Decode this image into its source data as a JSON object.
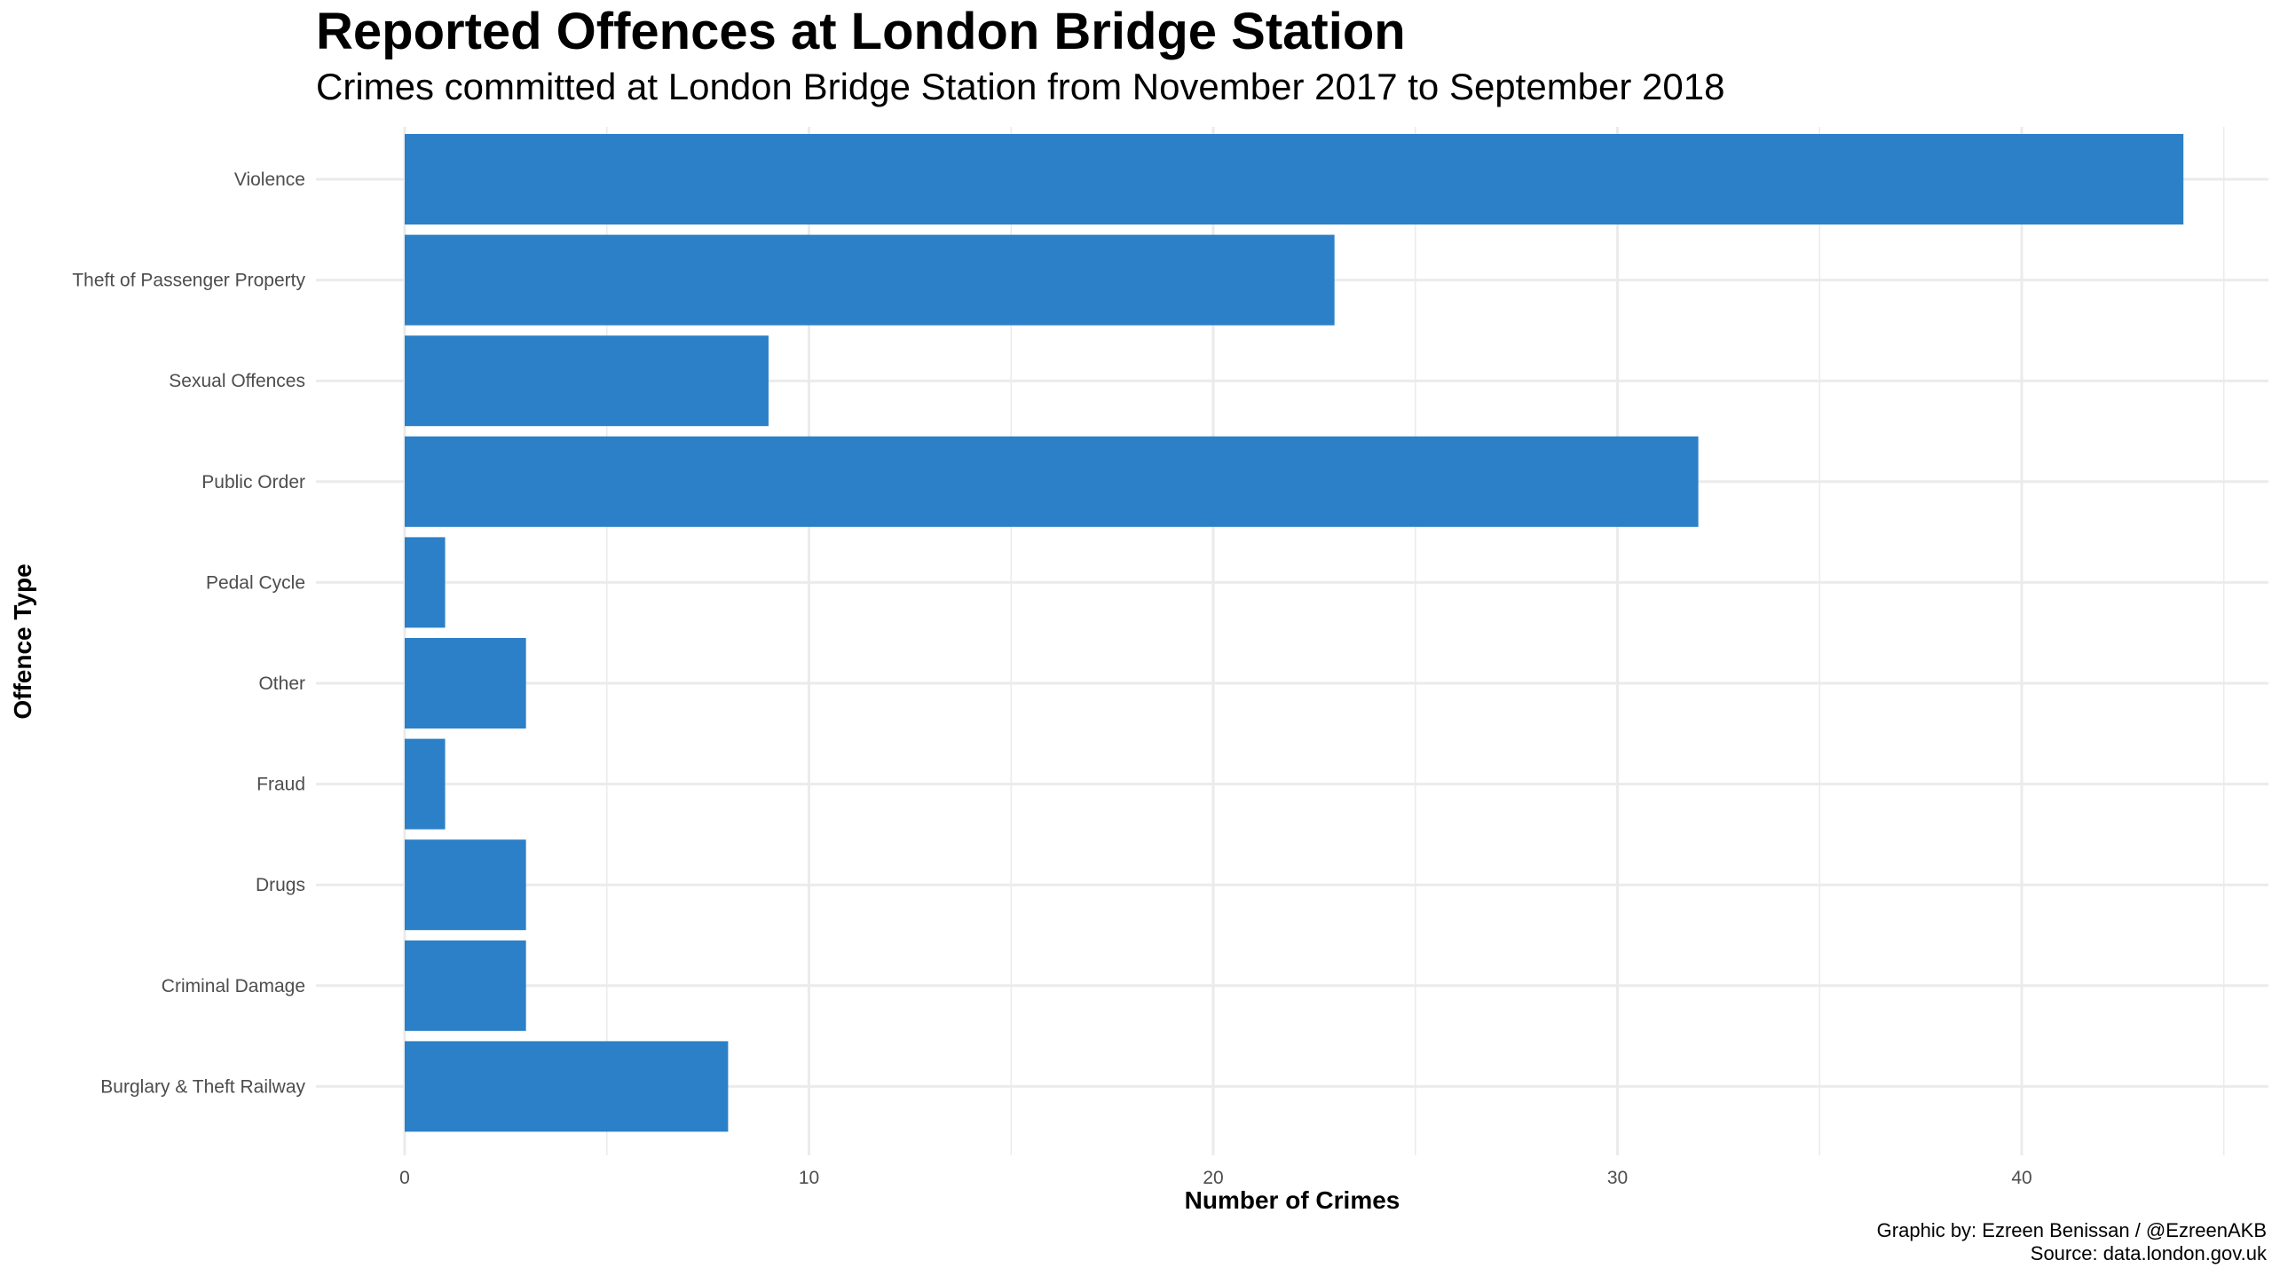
{
  "chart_data": {
    "type": "bar",
    "orientation": "horizontal",
    "title": "Reported Offences at London Bridge Station",
    "subtitle": "Crimes committed at London Bridge Station from November 2017 to September 2018",
    "xlabel": "Number of Crimes",
    "ylabel": "Offence Type",
    "categories": [
      "Violence",
      "Theft of Passenger Property",
      "Sexual Offences",
      "Public Order",
      "Pedal Cycle",
      "Other",
      "Fraud",
      "Drugs",
      "Criminal Damage",
      "Burglary & Theft Railway"
    ],
    "values": [
      44,
      23,
      9,
      32,
      1,
      3,
      1,
      3,
      3,
      8
    ],
    "xlim": [
      0,
      45
    ],
    "x_ticks": [
      0,
      10,
      20,
      30,
      40
    ],
    "x_tick_labels": [
      "0",
      "10",
      "20",
      "30",
      "40"
    ],
    "bar_color": "#2b80c8",
    "grid": true,
    "grid_color": "#ebebeb",
    "caption": [
      "Graphic by: Ezreen Benissan / @EzreenAKB",
      "Source: data.london.gov.uk"
    ]
  }
}
